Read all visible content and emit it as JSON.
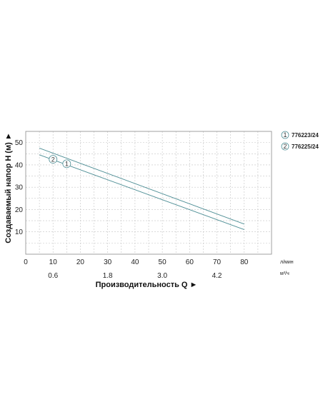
{
  "chart_data": {
    "type": "line",
    "ylabel": "Создаваемый напор H (м) ►",
    "xlabel": "Производительность Q ►",
    "x_unit_primary": "л/мин",
    "x_unit_secondary": "м³/ч",
    "xlim": [
      0,
      90
    ],
    "ylim": [
      0,
      55
    ],
    "x_ticks": [
      0,
      10,
      20,
      30,
      40,
      50,
      60,
      70,
      80
    ],
    "x_tick_labels": [
      "0",
      "10",
      "20",
      "30",
      "40",
      "50",
      "60",
      "70",
      "80"
    ],
    "x_secondary_ticks": [
      10,
      30,
      50,
      70
    ],
    "x_secondary_tick_labels": [
      "0.6",
      "1.8",
      "3.0",
      "4.2"
    ],
    "y_ticks": [
      10,
      20,
      30,
      40,
      50
    ],
    "y_tick_labels": [
      "10",
      "20",
      "30",
      "40",
      "50"
    ],
    "grid": true,
    "legend_position": "right",
    "series": [
      {
        "name": "776223/24",
        "marker": "1",
        "x": [
          5,
          80
        ],
        "y": [
          44.5,
          11
        ],
        "marker_at": [
          15,
          40.5
        ],
        "color": "#4f8f96"
      },
      {
        "name": "776225/24",
        "marker": "2",
        "x": [
          5,
          80
        ],
        "y": [
          47.5,
          13.5
        ],
        "marker_at": [
          10,
          42.5
        ],
        "color": "#4f8f96"
      }
    ]
  }
}
